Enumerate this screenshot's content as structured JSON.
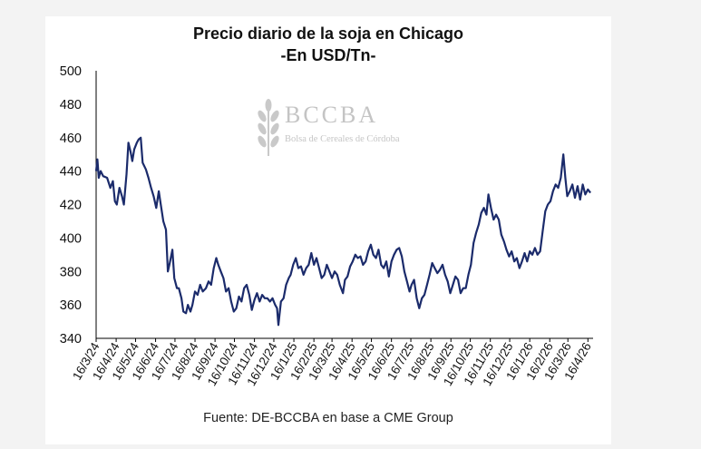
{
  "chart_data": {
    "type": "line",
    "title": "Precio diario de la soja en Chicago",
    "subtitle": "-En USD/Tn-",
    "source": "Fuente: DE-BCCBA en base a CME Group",
    "watermark": {
      "brand": "BCCBA",
      "subtitle": "Bolsa de Cereales de Córdoba"
    },
    "ylim": [
      340,
      500
    ],
    "yticks": [
      340,
      360,
      380,
      400,
      420,
      440,
      460,
      480,
      500
    ],
    "xticks": [
      "16/3/24",
      "16/4/24",
      "16/5/24",
      "16/6/24",
      "16/7/24",
      "16/8/24",
      "16/9/24",
      "16/10/24",
      "16/11/24",
      "16/12/24",
      "16/1/25",
      "16/2/25",
      "16/3/25",
      "16/4/25",
      "16/5/25",
      "16/6/25",
      "16/7/25",
      "16/8/25",
      "16/9/25",
      "16/10/25",
      "16/11/25",
      "16/12/25",
      "16/1/26",
      "16/2/26",
      "16/3/26",
      "16/4/26"
    ],
    "xlim": [
      "2024-03-16",
      "2026-04-24"
    ],
    "line_color": "#1b2b6b",
    "series": [
      {
        "points": [
          [
            "2024-03-16",
            440
          ],
          [
            "2024-03-18",
            447
          ],
          [
            "2024-03-20",
            436
          ],
          [
            "2024-03-23",
            440
          ],
          [
            "2024-03-27",
            437
          ],
          [
            "2024-04-02",
            436
          ],
          [
            "2024-04-07",
            430
          ],
          [
            "2024-04-11",
            434
          ],
          [
            "2024-04-14",
            422
          ],
          [
            "2024-04-17",
            420
          ],
          [
            "2024-04-21",
            430
          ],
          [
            "2024-04-25",
            425
          ],
          [
            "2024-04-28",
            420
          ],
          [
            "2024-05-02",
            438
          ],
          [
            "2024-05-05",
            457
          ],
          [
            "2024-05-08",
            452
          ],
          [
            "2024-05-11",
            446
          ],
          [
            "2024-05-14",
            453
          ],
          [
            "2024-05-18",
            457
          ],
          [
            "2024-05-21",
            459
          ],
          [
            "2024-05-24",
            460
          ],
          [
            "2024-05-27",
            445
          ],
          [
            "2024-06-01",
            441
          ],
          [
            "2024-06-05",
            436
          ],
          [
            "2024-06-09",
            430
          ],
          [
            "2024-06-13",
            425
          ],
          [
            "2024-06-17",
            418
          ],
          [
            "2024-06-21",
            428
          ],
          [
            "2024-06-24",
            420
          ],
          [
            "2024-06-28",
            410
          ],
          [
            "2024-07-02",
            405
          ],
          [
            "2024-07-05",
            380
          ],
          [
            "2024-07-08",
            385
          ],
          [
            "2024-07-12",
            393
          ],
          [
            "2024-07-15",
            376
          ],
          [
            "2024-07-19",
            370
          ],
          [
            "2024-07-22",
            370
          ],
          [
            "2024-07-26",
            364
          ],
          [
            "2024-07-29",
            356
          ],
          [
            "2024-08-02",
            355
          ],
          [
            "2024-08-05",
            360
          ],
          [
            "2024-08-09",
            356
          ],
          [
            "2024-08-12",
            360
          ],
          [
            "2024-08-16",
            368
          ],
          [
            "2024-08-20",
            366
          ],
          [
            "2024-08-24",
            372
          ],
          [
            "2024-08-28",
            368
          ],
          [
            "2024-09-02",
            370
          ],
          [
            "2024-09-06",
            374
          ],
          [
            "2024-09-10",
            372
          ],
          [
            "2024-09-14",
            382
          ],
          [
            "2024-09-18",
            388
          ],
          [
            "2024-09-21",
            384
          ],
          [
            "2024-09-25",
            380
          ],
          [
            "2024-09-29",
            376
          ],
          [
            "2024-10-03",
            368
          ],
          [
            "2024-10-07",
            370
          ],
          [
            "2024-10-11",
            362
          ],
          [
            "2024-10-15",
            356
          ],
          [
            "2024-10-19",
            358
          ],
          [
            "2024-10-23",
            365
          ],
          [
            "2024-10-27",
            362
          ],
          [
            "2024-10-31",
            370
          ],
          [
            "2024-11-04",
            372
          ],
          [
            "2024-11-08",
            366
          ],
          [
            "2024-11-12",
            357
          ],
          [
            "2024-11-16",
            363
          ],
          [
            "2024-11-20",
            367
          ],
          [
            "2024-11-24",
            362
          ],
          [
            "2024-11-28",
            366
          ],
          [
            "2024-12-02",
            364
          ],
          [
            "2024-12-06",
            364
          ],
          [
            "2024-12-10",
            362
          ],
          [
            "2024-12-14",
            364
          ],
          [
            "2024-12-18",
            360
          ],
          [
            "2024-12-21",
            358
          ],
          [
            "2024-12-23",
            348
          ],
          [
            "2024-12-27",
            362
          ],
          [
            "2024-12-31",
            364
          ],
          [
            "2025-01-04",
            372
          ],
          [
            "2025-01-08",
            376
          ],
          [
            "2025-01-11",
            378
          ],
          [
            "2025-01-15",
            384
          ],
          [
            "2025-01-19",
            388
          ],
          [
            "2025-01-23",
            382
          ],
          [
            "2025-01-27",
            383
          ],
          [
            "2025-01-31",
            378
          ],
          [
            "2025-02-04",
            382
          ],
          [
            "2025-02-08",
            384
          ],
          [
            "2025-02-12",
            391
          ],
          [
            "2025-02-16",
            384
          ],
          [
            "2025-02-20",
            388
          ],
          [
            "2025-02-24",
            382
          ],
          [
            "2025-02-28",
            376
          ],
          [
            "2025-03-04",
            378
          ],
          [
            "2025-03-08",
            384
          ],
          [
            "2025-03-12",
            380
          ],
          [
            "2025-03-16",
            376
          ],
          [
            "2025-03-20",
            380
          ],
          [
            "2025-03-24",
            378
          ],
          [
            "2025-03-28",
            372
          ],
          [
            "2025-04-02",
            367
          ],
          [
            "2025-04-05",
            375
          ],
          [
            "2025-04-09",
            377
          ],
          [
            "2025-04-13",
            383
          ],
          [
            "2025-04-17",
            386
          ],
          [
            "2025-04-21",
            390
          ],
          [
            "2025-04-25",
            388
          ],
          [
            "2025-04-29",
            389
          ],
          [
            "2025-05-03",
            384
          ],
          [
            "2025-05-07",
            386
          ],
          [
            "2025-05-11",
            392
          ],
          [
            "2025-05-15",
            396
          ],
          [
            "2025-05-19",
            390
          ],
          [
            "2025-05-23",
            388
          ],
          [
            "2025-05-27",
            393
          ],
          [
            "2025-05-31",
            384
          ],
          [
            "2025-06-04",
            382
          ],
          [
            "2025-06-08",
            386
          ],
          [
            "2025-06-12",
            377
          ],
          [
            "2025-06-16",
            386
          ],
          [
            "2025-06-20",
            390
          ],
          [
            "2025-06-24",
            393
          ],
          [
            "2025-06-28",
            394
          ],
          [
            "2025-07-02",
            389
          ],
          [
            "2025-07-06",
            380
          ],
          [
            "2025-07-10",
            374
          ],
          [
            "2025-07-14",
            368
          ],
          [
            "2025-07-17",
            372
          ],
          [
            "2025-07-21",
            375
          ],
          [
            "2025-07-25",
            364
          ],
          [
            "2025-07-29",
            358
          ],
          [
            "2025-08-02",
            364
          ],
          [
            "2025-08-06",
            366
          ],
          [
            "2025-08-10",
            372
          ],
          [
            "2025-08-14",
            378
          ],
          [
            "2025-08-18",
            385
          ],
          [
            "2025-08-22",
            382
          ],
          [
            "2025-08-26",
            379
          ],
          [
            "2025-08-30",
            381
          ],
          [
            "2025-09-03",
            384
          ],
          [
            "2025-09-07",
            378
          ],
          [
            "2025-09-11",
            374
          ],
          [
            "2025-09-15",
            367
          ],
          [
            "2025-09-19",
            372
          ],
          [
            "2025-09-23",
            377
          ],
          [
            "2025-09-27",
            375
          ],
          [
            "2025-10-01",
            367
          ],
          [
            "2025-10-05",
            370
          ],
          [
            "2025-10-09",
            370
          ],
          [
            "2025-10-13",
            378
          ],
          [
            "2025-10-17",
            384
          ],
          [
            "2025-10-21",
            397
          ],
          [
            "2025-10-25",
            403
          ],
          [
            "2025-10-29",
            408
          ],
          [
            "2025-11-02",
            415
          ],
          [
            "2025-11-06",
            418
          ],
          [
            "2025-11-10",
            414
          ],
          [
            "2025-11-13",
            426
          ],
          [
            "2025-11-17",
            418
          ],
          [
            "2025-11-21",
            411
          ],
          [
            "2025-11-25",
            414
          ],
          [
            "2025-11-29",
            411
          ],
          [
            "2025-12-03",
            402
          ],
          [
            "2025-12-07",
            398
          ],
          [
            "2025-12-11",
            393
          ],
          [
            "2025-12-15",
            389
          ],
          [
            "2025-12-19",
            392
          ],
          [
            "2025-12-23",
            386
          ],
          [
            "2025-12-27",
            388
          ],
          [
            "2025-12-31",
            382
          ],
          [
            "2026-01-04",
            386
          ],
          [
            "2026-01-08",
            391
          ],
          [
            "2026-01-12",
            386
          ],
          [
            "2026-01-16",
            392
          ],
          [
            "2026-01-20",
            390
          ],
          [
            "2026-01-24",
            394
          ],
          [
            "2026-01-28",
            390
          ],
          [
            "2026-02-01",
            392
          ],
          [
            "2026-02-05",
            404
          ],
          [
            "2026-02-09",
            416
          ],
          [
            "2026-02-13",
            420
          ],
          [
            "2026-02-17",
            422
          ],
          [
            "2026-02-21",
            428
          ],
          [
            "2026-02-25",
            432
          ],
          [
            "2026-03-01",
            430
          ],
          [
            "2026-03-05",
            436
          ],
          [
            "2026-03-09",
            450
          ],
          [
            "2026-03-12",
            436
          ],
          [
            "2026-03-15",
            425
          ],
          [
            "2026-03-19",
            428
          ],
          [
            "2026-03-23",
            432
          ],
          [
            "2026-03-27",
            424
          ],
          [
            "2026-03-31",
            431
          ],
          [
            "2026-04-04",
            423
          ],
          [
            "2026-04-08",
            432
          ],
          [
            "2026-04-12",
            426
          ],
          [
            "2026-04-16",
            429
          ],
          [
            "2026-04-20",
            427
          ]
        ]
      }
    ]
  }
}
